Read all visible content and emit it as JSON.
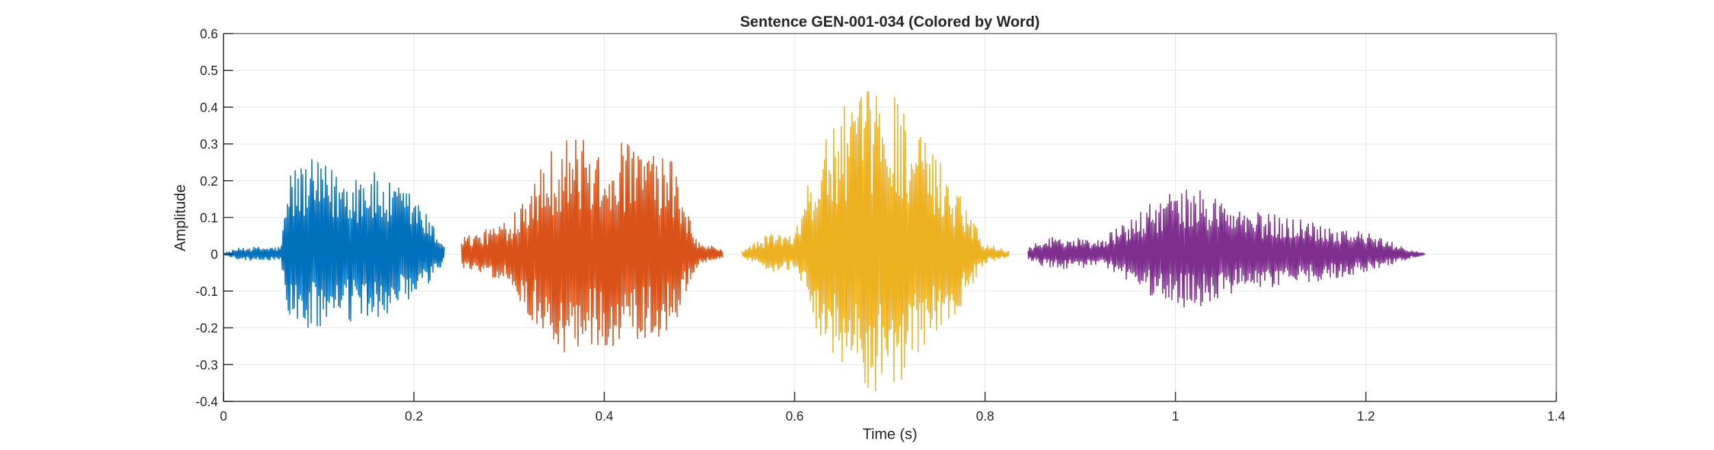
{
  "chart_data": {
    "type": "line",
    "title": "Sentence GEN-001-034 (Colored by Word)",
    "xlabel": "Time (s)",
    "ylabel": "Amplitude",
    "xlim": [
      0,
      1.4
    ],
    "ylim": [
      -0.4,
      0.6
    ],
    "xticks": [
      0,
      0.2,
      0.4,
      0.6,
      0.8,
      1,
      1.2,
      1.4
    ],
    "xtick_labels": [
      "0",
      "0.2",
      "0.4",
      "0.6",
      "0.8",
      "1",
      "1.2",
      "1.4"
    ],
    "yticks": [
      -0.4,
      -0.3,
      -0.2,
      -0.1,
      0,
      0.1,
      0.2,
      0.3,
      0.4,
      0.5,
      0.6
    ],
    "ytick_labels": [
      "-0.4",
      "-0.3",
      "-0.2",
      "-0.1",
      "0",
      "0.1",
      "0.2",
      "0.3",
      "0.4",
      "0.5",
      "0.6"
    ],
    "grid": true,
    "series": [
      {
        "color": "#0072BD",
        "t_start": 0.0,
        "t_end": 0.232,
        "envelope": [
          [
            0.0,
            0.003
          ],
          [
            0.02,
            0.02
          ],
          [
            0.06,
            0.02
          ],
          [
            0.07,
            0.24
          ],
          [
            0.09,
            0.26
          ],
          [
            0.12,
            0.23
          ],
          [
            0.15,
            0.24
          ],
          [
            0.17,
            0.2
          ],
          [
            0.2,
            0.17
          ],
          [
            0.22,
            0.08
          ],
          [
            0.232,
            0.03
          ]
        ]
      },
      {
        "color": "#D95319",
        "t_start": 0.25,
        "t_end": 0.525,
        "envelope": [
          [
            0.25,
            0.05
          ],
          [
            0.27,
            0.06
          ],
          [
            0.3,
            0.1
          ],
          [
            0.33,
            0.25
          ],
          [
            0.36,
            0.33
          ],
          [
            0.39,
            0.3
          ],
          [
            0.43,
            0.31
          ],
          [
            0.47,
            0.26
          ],
          [
            0.49,
            0.1
          ],
          [
            0.5,
            0.03
          ],
          [
            0.525,
            0.015
          ]
        ]
      },
      {
        "color": "#EDB120",
        "t_start": 0.545,
        "t_end": 0.825,
        "envelope": [
          [
            0.545,
            0.01
          ],
          [
            0.575,
            0.06
          ],
          [
            0.6,
            0.05
          ],
          [
            0.62,
            0.25
          ],
          [
            0.65,
            0.4
          ],
          [
            0.68,
            0.45
          ],
          [
            0.7,
            0.48
          ],
          [
            0.73,
            0.33
          ],
          [
            0.77,
            0.2
          ],
          [
            0.8,
            0.03
          ],
          [
            0.825,
            0.01
          ]
        ]
      },
      {
        "color": "#7E2F8E",
        "t_start": 0.845,
        "t_end": 1.262,
        "envelope": [
          [
            0.845,
            0.02
          ],
          [
            0.87,
            0.05
          ],
          [
            0.92,
            0.04
          ],
          [
            0.95,
            0.09
          ],
          [
            0.99,
            0.17
          ],
          [
            1.03,
            0.18
          ],
          [
            1.07,
            0.12
          ],
          [
            1.13,
            0.1
          ],
          [
            1.2,
            0.06
          ],
          [
            1.25,
            0.01
          ],
          [
            1.262,
            0.003
          ]
        ]
      }
    ]
  }
}
